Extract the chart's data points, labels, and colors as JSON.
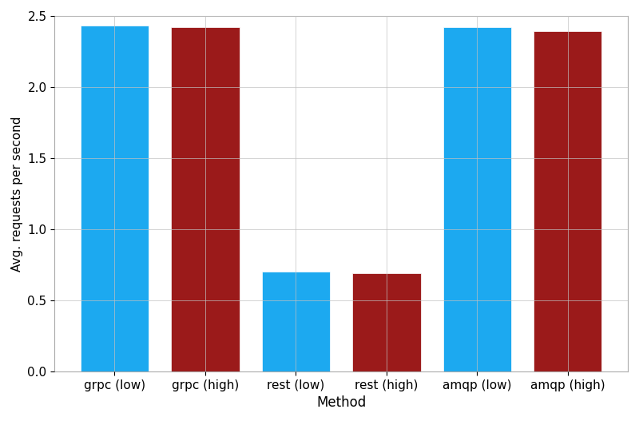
{
  "categories": [
    "grpc (low)",
    "grpc (high)",
    "rest (low)",
    "rest (high)",
    "amqp (low)",
    "amqp (high)"
  ],
  "values": [
    2.43,
    2.42,
    0.7,
    0.69,
    2.42,
    2.39
  ],
  "bar_colors": [
    "#1CA9F0",
    "#9B1A1A",
    "#1CA9F0",
    "#9B1A1A",
    "#1CA9F0",
    "#9B1A1A"
  ],
  "xlabel": "Method",
  "ylabel": "Avg. requests per second",
  "ylim": [
    0,
    2.5
  ],
  "yticks": [
    0.0,
    0.5,
    1.0,
    1.5,
    2.0,
    2.5
  ],
  "grid_color": "#C0C0C0",
  "background_color": "#FFFFFF",
  "bar_width": 0.75,
  "edge_color": "#FFFFFF",
  "edge_linewidth": 0.5,
  "xlabel_fontsize": 12,
  "ylabel_fontsize": 11,
  "tick_fontsize": 11
}
